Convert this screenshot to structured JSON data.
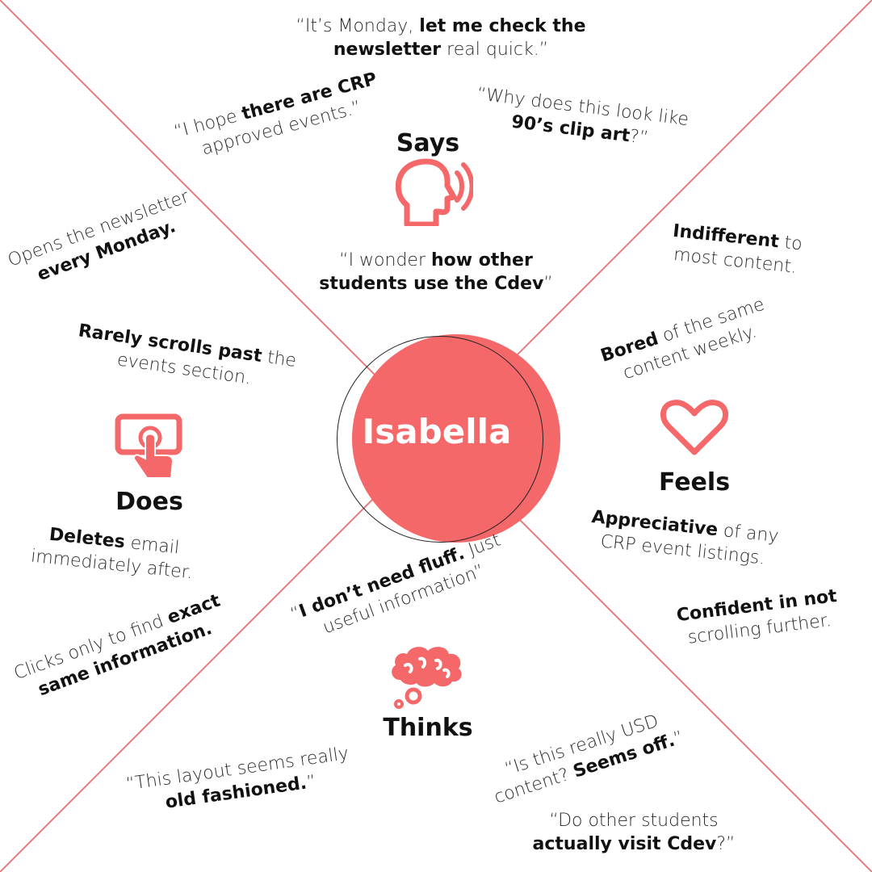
{
  "persona": {
    "name": "Isabella"
  },
  "colors": {
    "accent": "#f4686a",
    "line": "#e77b7b"
  },
  "sections": {
    "says": {
      "title": "Says",
      "icon": "speaking-head-icon"
    },
    "does": {
      "title": "Does",
      "icon": "tap-touch-icon"
    },
    "feels": {
      "title": "Feels",
      "icon": "heart-icon"
    },
    "thinks": {
      "title": "Thinks",
      "icon": "thought-cloud-icon"
    }
  },
  "says_notes": {
    "monday": {
      "a": "“It’s Monday, ",
      "b": "let me check the",
      "c": "newsletter",
      "d": " real quick.”"
    },
    "crp": {
      "a": "“I hope ",
      "b": "there are CRP",
      "c": "approved events.”"
    },
    "clipart": {
      "a": "“Why does this look like",
      "b": "90’s clip art",
      "c": "?”"
    },
    "wonder": {
      "a": "“I wonder ",
      "b": "how other",
      "c": "students use the Cdev",
      "d": "”"
    }
  },
  "does_notes": {
    "opens": {
      "a": "Opens the newsletter",
      "b": "every Monday."
    },
    "rarely": {
      "a": "Rarely scrolls past",
      "b": " the",
      "c": "events section."
    },
    "deletes": {
      "a": "Deletes",
      "b": " email",
      "c": "immediately after."
    },
    "clicks": {
      "a": "Clicks only to find ",
      "b": "exact",
      "c": "same information."
    }
  },
  "feels_notes": {
    "indifferent": {
      "a": "Indifferent",
      "b": " to",
      "c": "most content."
    },
    "bored": {
      "a": "Bored",
      "b": " of the same",
      "c": "content weekly."
    },
    "appreciative": {
      "a": "Appreciative",
      "b": " of any",
      "c": "CRP event listings."
    },
    "confident": {
      "a": "Confident in not",
      "b": "scrolling further."
    }
  },
  "thinks_notes": {
    "fluff": {
      "a": "“",
      "b": "I don’t need fluff.",
      "c": " Just",
      "d": "useful information”"
    },
    "layout": {
      "a": "“This layout seems really",
      "b": "old fashioned.",
      "c": "”"
    },
    "usd": {
      "a": "“Is this really USD",
      "b": "content? ",
      "c": "Seems off.",
      "d": "”"
    },
    "cdev": {
      "a": "“Do other students",
      "b": "actually visit Cdev",
      "c": "?”"
    }
  }
}
